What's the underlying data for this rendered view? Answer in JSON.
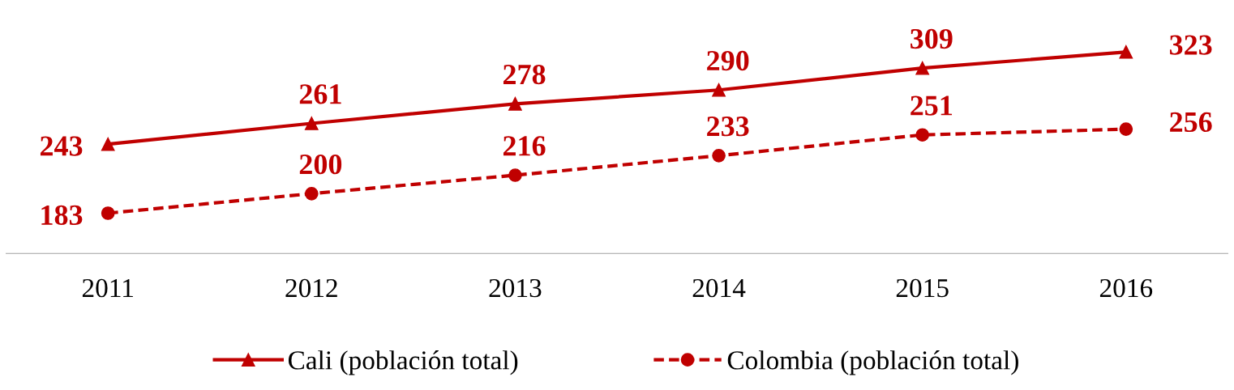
{
  "chart_data": {
    "type": "line",
    "categories": [
      "2011",
      "2012",
      "2013",
      "2014",
      "2015",
      "2016"
    ],
    "series": [
      {
        "name": "Cali (población total)",
        "color": "#c00000",
        "values": [
          243,
          261,
          278,
          290,
          309,
          323
        ],
        "marker": "triangle",
        "line_style": "solid"
      },
      {
        "name": "Colombia (población total)",
        "color": "#c00000",
        "values": [
          183,
          200,
          216,
          233,
          251,
          256
        ],
        "marker": "circle",
        "line_style": "dashed"
      }
    ],
    "data_labels": true,
    "grid": false,
    "legend": "bottom",
    "tick_labels": "x"
  }
}
